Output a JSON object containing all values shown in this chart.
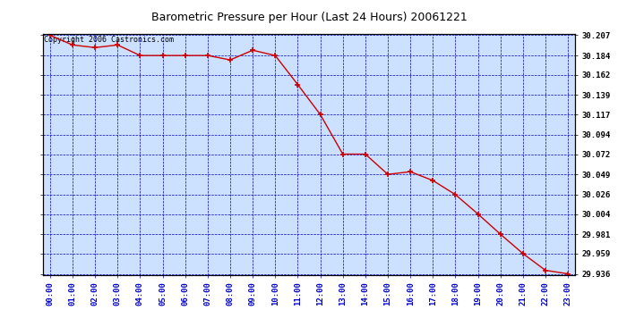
{
  "title": "Barometric Pressure per Hour (Last 24 Hours) 20061221",
  "copyright": "Copyright 2006 Castronics.com",
  "x_labels": [
    "00:00",
    "01:00",
    "02:00",
    "03:00",
    "04:00",
    "05:00",
    "06:00",
    "07:00",
    "08:00",
    "09:00",
    "10:00",
    "11:00",
    "12:00",
    "13:00",
    "14:00",
    "15:00",
    "16:00",
    "17:00",
    "18:00",
    "19:00",
    "20:00",
    "21:00",
    "22:00",
    "23:00"
  ],
  "y_values": [
    30.207,
    30.196,
    30.193,
    30.196,
    30.184,
    30.184,
    30.184,
    30.184,
    30.179,
    30.19,
    30.184,
    30.151,
    30.117,
    30.072,
    30.072,
    30.049,
    30.052,
    30.042,
    30.026,
    30.004,
    29.981,
    29.959,
    29.94,
    29.936
  ],
  "y_min": 29.936,
  "y_max": 30.207,
  "y_ticks": [
    30.207,
    30.184,
    30.162,
    30.139,
    30.117,
    30.094,
    30.072,
    30.049,
    30.026,
    30.004,
    29.981,
    29.959,
    29.936
  ],
  "line_color": "#cc0000",
  "marker_color": "#cc0000",
  "bg_color": "#ffffff",
  "plot_bg_color": "#cce0ff",
  "grid_color": "#0000bb",
  "title_color": "#000000",
  "title_fontsize": 9,
  "copyright_fontsize": 6,
  "tick_label_color": "#0000cc",
  "right_tick_color": "#000000"
}
